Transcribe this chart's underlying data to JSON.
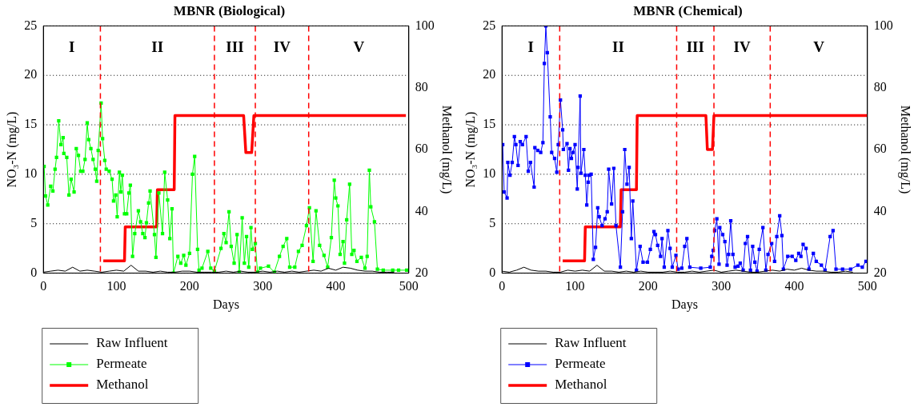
{
  "chart_data": [
    {
      "type": "line",
      "title": "MBNR (Biological)",
      "xlabel": "Days",
      "ylabel": "NO₃-N (mg/L)",
      "y2label": "Methanol (mg/L)",
      "xlim": [
        0,
        500
      ],
      "xticks": [
        0,
        100,
        200,
        300,
        400,
        500
      ],
      "ylim": [
        0,
        25
      ],
      "yticks": [
        0,
        5,
        10,
        15,
        20,
        25
      ],
      "y2lim": [
        20,
        100
      ],
      "y2ticks": [
        20,
        40,
        60,
        80,
        100
      ],
      "grid": "y",
      "legend": "bottom left",
      "ref_lines": [
        {
          "axis": "x",
          "value": 78,
          "color": "#ff0000",
          "line_style": "dashed"
        },
        {
          "axis": "x",
          "value": 234,
          "color": "#ff0000",
          "line_style": "dashed"
        },
        {
          "axis": "x",
          "value": 290,
          "color": "#ff0000",
          "line_style": "dashed"
        },
        {
          "axis": "x",
          "value": 363,
          "color": "#ff0000",
          "line_style": "dashed"
        }
      ],
      "annotations": [
        "I",
        "II",
        "III",
        "IV",
        "V"
      ],
      "series": [
        {
          "name": "Raw Influent",
          "color": "#000000",
          "marker": "none",
          "x": [
            0,
            10,
            20,
            30,
            40,
            50,
            60,
            70,
            80,
            90,
            100,
            110,
            120,
            130,
            140,
            150,
            160,
            170,
            180,
            190,
            200,
            210,
            220,
            230,
            240,
            250,
            260,
            270,
            280,
            290,
            300,
            310,
            320,
            330,
            340,
            350,
            360,
            370,
            380,
            390,
            400,
            410,
            420,
            430,
            440,
            450,
            460,
            470,
            480
          ],
          "values": [
            0.1,
            0.2,
            0.3,
            0.2,
            0.6,
            0.2,
            0.3,
            0.2,
            0.1,
            0.2,
            0.3,
            0.2,
            0.8,
            0.2,
            0.2,
            0.1,
            0.2,
            0.1,
            0.1,
            0.2,
            0.2,
            0.1,
            0.1,
            0.1,
            0.1,
            0.2,
            0.1,
            0.2,
            0.1,
            0.1,
            0.2,
            0.1,
            0.2,
            0.1,
            0.2,
            0.1,
            0.2,
            0.3,
            0.2,
            0.5,
            0.3,
            0.6,
            0.5,
            0.3,
            0.2,
            0.2,
            0.1,
            0.1,
            0.1
          ]
        },
        {
          "name": "Permeate",
          "color": "#00ff00",
          "marker": "square",
          "x": [
            1,
            3,
            6,
            10,
            13,
            16,
            18,
            21,
            24,
            27,
            28,
            32,
            35,
            38,
            42,
            45,
            48,
            51,
            54,
            57,
            60,
            62,
            65,
            68,
            71,
            73,
            75,
            79,
            81,
            84,
            86,
            90,
            94,
            96,
            99,
            101,
            104,
            106,
            108,
            111,
            114,
            117,
            119,
            122,
            125,
            130,
            133,
            136,
            139,
            141,
            144,
            146,
            152,
            154,
            158,
            163,
            166,
            170,
            173,
            176,
            178,
            184,
            188,
            192,
            195,
            200,
            204,
            207,
            211,
            213,
            217,
            225,
            229,
            234,
            243,
            247,
            250,
            254,
            257,
            261,
            265,
            268,
            272,
            275,
            278,
            281,
            284,
            286,
            290,
            293,
            297,
            308,
            316,
            323,
            328,
            333,
            337,
            344,
            349,
            354,
            360,
            364,
            369,
            373,
            378,
            384,
            389,
            394,
            398,
            400,
            403,
            406,
            410,
            412,
            415,
            419,
            422,
            425,
            429,
            435,
            440,
            443,
            446,
            448,
            453,
            457,
            465,
            478,
            486,
            497
          ],
          "values": [
            10.8,
            7.8,
            6.9,
            8.8,
            8.3,
            10.5,
            11.7,
            15.4,
            13.0,
            13.7,
            12.1,
            11.7,
            7.9,
            9.5,
            8.2,
            12.6,
            11.9,
            10.3,
            10.3,
            11.5,
            15.2,
            13.5,
            12.6,
            11.5,
            10.5,
            9.3,
            12.4,
            17.2,
            13.6,
            11.4,
            10.5,
            10.3,
            9.5,
            7.3,
            7.9,
            5.7,
            10.2,
            8.2,
            9.9,
            6.0,
            6.0,
            8.1,
            8.9,
            1.7,
            4.0,
            6.3,
            5.2,
            4.0,
            3.6,
            5.1,
            7.1,
            8.3,
            3.9,
            1.6,
            8.1,
            4.0,
            10.2,
            7.4,
            3.5,
            6.5,
            0.0,
            1.7,
            1.0,
            1.8,
            0.8,
            2.0,
            10.0,
            11.8,
            2.4,
            0.3,
            0.5,
            2.2,
            0.5,
            0.2,
            2.5,
            4.0,
            3.1,
            6.2,
            2.7,
            1.0,
            3.9,
            0.1,
            5.6,
            1.0,
            3.7,
            0.6,
            4.6,
            2.4,
            3.0,
            0.1,
            0.5,
            0.7,
            0.1,
            1.7,
            2.7,
            3.5,
            0.6,
            0.6,
            2.2,
            2.8,
            4.8,
            6.6,
            1.2,
            6.3,
            2.8,
            1.8,
            0.6,
            3.6,
            9.4,
            7.6,
            6.8,
            1.9,
            3.2,
            1.0,
            5.4,
            9.0,
            1.9,
            2.3,
            1.2,
            1.6,
            0.5,
            1.7,
            10.4,
            6.7,
            5.2,
            0.4,
            0.3,
            0.3,
            0.3,
            0.3
          ]
        },
        {
          "name": "Methanol",
          "color": "#ff0000",
          "marker": "none",
          "axis": "y2",
          "x": [
            82,
            111,
            112,
            155,
            156,
            179,
            180,
            274,
            277,
            285,
            288,
            496
          ],
          "values": [
            24,
            24,
            35,
            35,
            47,
            47,
            71,
            71,
            59,
            59,
            71,
            71
          ]
        }
      ]
    },
    {
      "type": "line",
      "title": "MBNR (Chemical)",
      "xlabel": "Days",
      "ylabel": "NO₃-N (mg/L)",
      "y2label": "Methanol (mg/L)",
      "xlim": [
        0,
        500
      ],
      "xticks": [
        0,
        100,
        200,
        300,
        400,
        500
      ],
      "ylim": [
        0,
        25
      ],
      "yticks": [
        0,
        5,
        10,
        15,
        20,
        25
      ],
      "y2lim": [
        20,
        100
      ],
      "y2ticks": [
        20,
        40,
        60,
        80,
        100
      ],
      "grid": "y",
      "legend": "bottom left",
      "ref_lines": [
        {
          "axis": "x",
          "value": 79,
          "color": "#ff0000",
          "line_style": "dashed"
        },
        {
          "axis": "x",
          "value": 239,
          "color": "#ff0000",
          "line_style": "dashed"
        },
        {
          "axis": "x",
          "value": 290,
          "color": "#ff0000",
          "line_style": "dashed"
        },
        {
          "axis": "x",
          "value": 367,
          "color": "#ff0000",
          "line_style": "dashed"
        }
      ],
      "annotations": [
        "I",
        "II",
        "III",
        "IV",
        "V"
      ],
      "series": [
        {
          "name": "Raw Influent",
          "color": "#000000",
          "marker": "none",
          "x": [
            0,
            10,
            20,
            30,
            40,
            50,
            60,
            70,
            80,
            90,
            100,
            110,
            120,
            130,
            140,
            150,
            160,
            170,
            180,
            190,
            200,
            210,
            220,
            230,
            240,
            250,
            260,
            270,
            280,
            290,
            300,
            310,
            320,
            330,
            340,
            350,
            360,
            370,
            380,
            390,
            400,
            410,
            420,
            430,
            440,
            450,
            460,
            470,
            480
          ],
          "values": [
            0.2,
            0.1,
            0.3,
            0.6,
            0.3,
            0.2,
            0.2,
            0.1,
            0.1,
            0.3,
            0.2,
            0.3,
            0.2,
            0.8,
            0.2,
            0.2,
            0.1,
            0.2,
            0.1,
            0.2,
            0.1,
            0.1,
            0.1,
            0.2,
            0.1,
            0.1,
            0.2,
            0.1,
            0.2,
            0.3,
            0.1,
            0.2,
            0.3,
            0.2,
            0.1,
            0.1,
            0.2,
            0.3,
            0.2,
            0.4,
            0.3,
            0.5,
            0.3,
            0.2,
            0.2,
            0.1,
            0.1,
            0.2,
            0.1
          ]
        },
        {
          "name": "Permeate",
          "color": "#0000ff",
          "marker": "square",
          "x": [
            1,
            3,
            7,
            8,
            11,
            14,
            17,
            19,
            22,
            25,
            28,
            33,
            36,
            39,
            44,
            45,
            49,
            53,
            56,
            58,
            60,
            62,
            66,
            68,
            72,
            75,
            77,
            80,
            83,
            84,
            89,
            91,
            93,
            95,
            97,
            100,
            103,
            104,
            107,
            108,
            112,
            114,
            116,
            118,
            119,
            122,
            125,
            128,
            131,
            133,
            137,
            141,
            144,
            146,
            150,
            153,
            156,
            162,
            165,
            168,
            171,
            174,
            177,
            179,
            184,
            189,
            193,
            199,
            203,
            208,
            210,
            213,
            217,
            219,
            222,
            227,
            230,
            233,
            238,
            241,
            246,
            250,
            253,
            257,
            272,
            285,
            287,
            289,
            291,
            294,
            297,
            298,
            302,
            305,
            308,
            310,
            313,
            316,
            319,
            323,
            326,
            330,
            333,
            336,
            340,
            343,
            346,
            349,
            352,
            357,
            361,
            364,
            369,
            373,
            376,
            380,
            383,
            385,
            391,
            397,
            402,
            406,
            409,
            412,
            416,
            420,
            426,
            430,
            437,
            442,
            449,
            453,
            457,
            466,
            477,
            487,
            493,
            498
          ],
          "values": [
            13.0,
            8.2,
            7.6,
            11.2,
            9.9,
            11.2,
            13.8,
            13.0,
            10.9,
            13.3,
            13.0,
            13.8,
            10.3,
            11.2,
            8.7,
            12.7,
            12.4,
            12.2,
            13.2,
            21.2,
            25.0,
            22.3,
            15.8,
            12.2,
            11.6,
            10.2,
            13.0,
            17.5,
            14.5,
            12.5,
            13.1,
            10.4,
            12.6,
            11.6,
            12.2,
            13.0,
            8.5,
            10.7,
            17.9,
            10.1,
            12.5,
            9.9,
            6.9,
            9.2,
            9.9,
            10.0,
            1.4,
            2.6,
            6.6,
            5.7,
            4.8,
            5.5,
            6.2,
            10.5,
            7.0,
            10.6,
            4.8,
            0.6,
            6.2,
            12.5,
            9.0,
            10.7,
            3.5,
            7.3,
            0.3,
            2.7,
            1.1,
            1.1,
            2.4,
            4.2,
            3.9,
            2.8,
            1.7,
            3.5,
            0.6,
            4.3,
            2.5,
            0.6,
            1.8,
            0.4,
            0.5,
            2.7,
            3.5,
            0.6,
            0.5,
            0.6,
            1.7,
            2.3,
            4.3,
            5.5,
            0.9,
            4.6,
            3.9,
            3.2,
            0.8,
            1.9,
            5.3,
            1.9,
            0.6,
            0.7,
            1.0,
            0.3,
            3.0,
            3.7,
            0.3,
            2.7,
            1.1,
            0.2,
            2.4,
            4.6,
            0.3,
            1.9,
            3.0,
            1.2,
            3.7,
            5.8,
            3.8,
            0.4,
            1.7,
            1.7,
            1.3,
            2.0,
            1.7,
            2.9,
            2.5,
            0.4,
            2.0,
            1.2,
            0.8,
            0.3,
            3.7,
            4.3,
            0.4,
            0.4,
            0.4,
            0.8,
            0.6,
            1.2
          ]
        },
        {
          "name": "Methanol",
          "color": "#ff0000",
          "marker": "none",
          "axis": "y2",
          "x": [
            83,
            113,
            114,
            162,
            163,
            184,
            185,
            279,
            281,
            288,
            290,
            500
          ],
          "values": [
            24,
            24,
            35,
            35,
            47,
            47,
            71,
            71,
            60,
            60,
            71,
            71
          ]
        }
      ]
    }
  ]
}
